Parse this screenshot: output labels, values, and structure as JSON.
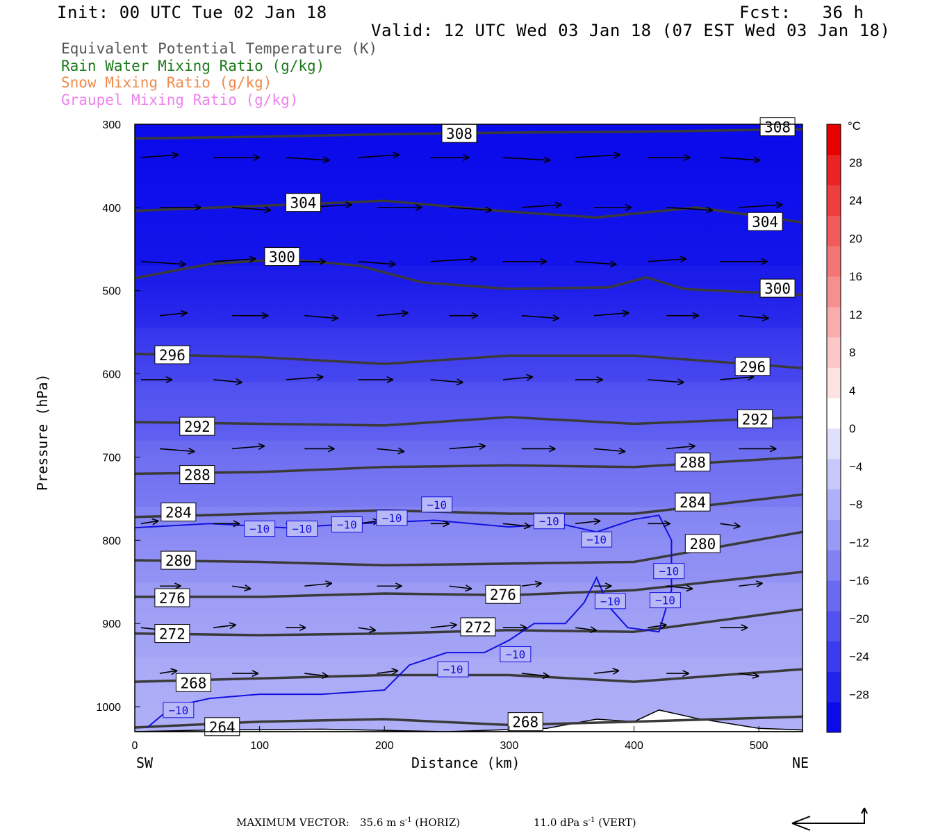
{
  "header": {
    "init": "Init: 00 UTC Tue 02 Jan 18",
    "fcst": "Fcst:   36 h",
    "valid": "Valid: 12 UTC Wed 03 Jan 18 (07 EST Wed 03 Jan 18)"
  },
  "legend_items": [
    {
      "label": "Equivalent Potential Temperature (K)",
      "color": "#555555"
    },
    {
      "label": "Rain Water Mixing Ratio (g/kg)",
      "color": "#1a7a1a"
    },
    {
      "label": "Snow Mixing Ratio (g/kg)",
      "color": "#f08a4b"
    },
    {
      "label": "Graupel Mixing Ratio (g/kg)",
      "color": "#ee82ee"
    }
  ],
  "chart_data": {
    "type": "cross-section contour",
    "xlabel": "Distance (km)",
    "ylabel": "Pressure (hPa)",
    "xlim": [
      0,
      535
    ],
    "ylim": [
      300,
      1030
    ],
    "y_scale": "inverted",
    "x_ticks": [
      0,
      100,
      200,
      300,
      400,
      500
    ],
    "y_ticks": [
      300,
      400,
      500,
      600,
      700,
      800,
      900,
      1000
    ],
    "left_end_label": "SW",
    "right_end_label": "NE",
    "colorbar": {
      "unit": "°C",
      "tick_labels": [
        "28",
        "24",
        "20",
        "16",
        "12",
        "8",
        "4",
        "0",
        "−4",
        "−8",
        "−12",
        "−16",
        "−20",
        "−24",
        "−28"
      ],
      "tick_values": [
        28,
        24,
        20,
        16,
        12,
        8,
        4,
        0,
        -4,
        -8,
        -12,
        -16,
        -20,
        -24,
        -28
      ],
      "range": [
        -32,
        32
      ],
      "colors": [
        "#0a0aeb",
        "#2323ee",
        "#3b3bef",
        "#5252f0",
        "#6a6af1",
        "#8181f3",
        "#9999f6",
        "#b0b0f9",
        "#c8c8fb",
        "#e0e0fd",
        "#ffffff",
        "#fde2e2",
        "#fbc7c7",
        "#f9acac",
        "#f69090",
        "#f37575",
        "#f05a5a",
        "#ee3e3e",
        "#ea2424",
        "#e80000"
      ]
    },
    "theta_e_contours": [
      {
        "level": 308,
        "points": [
          [
            0,
            317
          ],
          [
            100,
            315
          ],
          [
            200,
            312
          ],
          [
            300,
            310
          ],
          [
            400,
            309
          ],
          [
            535,
            306
          ]
        ]
      },
      {
        "level": 304,
        "points": [
          [
            0,
            404
          ],
          [
            100,
            398
          ],
          [
            200,
            392
          ],
          [
            300,
            405
          ],
          [
            370,
            412
          ],
          [
            450,
            400
          ],
          [
            535,
            418
          ]
        ]
      },
      {
        "level": 300,
        "points": [
          [
            0,
            485
          ],
          [
            60,
            468
          ],
          [
            120,
            462
          ],
          [
            180,
            470
          ],
          [
            230,
            490
          ],
          [
            300,
            498
          ],
          [
            380,
            496
          ],
          [
            410,
            484
          ],
          [
            440,
            498
          ],
          [
            535,
            505
          ]
        ]
      },
      {
        "level": 296,
        "points": [
          [
            0,
            576
          ],
          [
            100,
            580
          ],
          [
            200,
            588
          ],
          [
            300,
            578
          ],
          [
            400,
            578
          ],
          [
            535,
            593
          ]
        ]
      },
      {
        "level": 292,
        "points": [
          [
            0,
            658
          ],
          [
            100,
            660
          ],
          [
            200,
            662
          ],
          [
            300,
            652
          ],
          [
            400,
            660
          ],
          [
            535,
            652
          ]
        ]
      },
      {
        "level": 288,
        "points": [
          [
            0,
            720
          ],
          [
            100,
            718
          ],
          [
            200,
            712
          ],
          [
            300,
            710
          ],
          [
            400,
            712
          ],
          [
            535,
            700
          ]
        ]
      },
      {
        "level": 284,
        "points": [
          [
            0,
            772
          ],
          [
            100,
            768
          ],
          [
            200,
            764
          ],
          [
            300,
            768
          ],
          [
            400,
            768
          ],
          [
            535,
            745
          ]
        ]
      },
      {
        "level": 280,
        "points": [
          [
            0,
            824
          ],
          [
            100,
            826
          ],
          [
            200,
            830
          ],
          [
            300,
            828
          ],
          [
            400,
            826
          ],
          [
            535,
            790
          ]
        ]
      },
      {
        "level": 276,
        "points": [
          [
            0,
            868
          ],
          [
            100,
            868
          ],
          [
            200,
            864
          ],
          [
            300,
            866
          ],
          [
            400,
            860
          ],
          [
            535,
            838
          ]
        ]
      },
      {
        "level": 272,
        "points": [
          [
            0,
            912
          ],
          [
            100,
            914
          ],
          [
            200,
            912
          ],
          [
            300,
            908
          ],
          [
            400,
            910
          ],
          [
            535,
            883
          ]
        ]
      },
      {
        "level": 268,
        "points": [
          [
            0,
            970
          ],
          [
            100,
            966
          ],
          [
            200,
            962
          ],
          [
            300,
            962
          ],
          [
            400,
            970
          ],
          [
            535,
            955
          ]
        ]
      },
      {
        "level": 264,
        "points": [
          [
            0,
            1025
          ],
          [
            100,
            1018
          ],
          [
            200,
            1015
          ],
          [
            300,
            1022
          ],
          [
            400,
            1018
          ],
          [
            535,
            1012
          ]
        ]
      }
    ],
    "isotherm_labels": [
      "−10",
      "−10",
      "−10",
      "−10",
      "−10",
      "−10",
      "−10",
      "−10",
      "−10",
      "−10",
      "−10",
      "−10",
      "−10"
    ],
    "isotherm_minus10": [
      [
        0,
        785
      ],
      [
        60,
        780
      ],
      [
        120,
        785
      ],
      [
        180,
        780
      ],
      [
        240,
        776
      ],
      [
        300,
        784
      ],
      [
        340,
        780
      ],
      [
        370,
        790
      ],
      [
        400,
        775
      ],
      [
        420,
        770
      ],
      [
        430,
        800
      ],
      [
        430,
        860
      ],
      [
        420,
        910
      ],
      [
        395,
        905
      ],
      [
        380,
        880
      ],
      [
        370,
        845
      ],
      [
        360,
        875
      ],
      [
        345,
        900
      ],
      [
        320,
        900
      ],
      [
        300,
        920
      ],
      [
        280,
        935
      ],
      [
        250,
        935
      ],
      [
        220,
        950
      ],
      [
        200,
        980
      ],
      [
        150,
        985
      ],
      [
        100,
        985
      ],
      [
        60,
        990
      ],
      [
        30,
        1000
      ],
      [
        10,
        1025
      ]
    ]
  },
  "footer": {
    "max_vector_label": "MAXIMUM VECTOR:",
    "horiz_value": "35.6 m s",
    "horiz_unit": "(HORIZ)",
    "vert_value": "11.0 dPa s",
    "vert_unit": "(VERT)",
    "exponent": "-1"
  }
}
